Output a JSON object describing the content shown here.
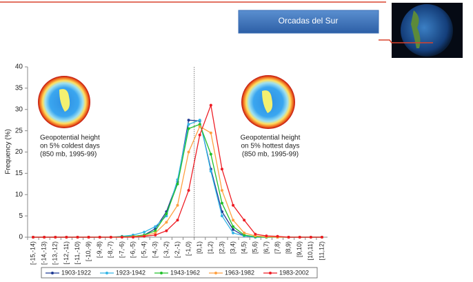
{
  "header": {
    "button": "Orcadas del Sur"
  },
  "chart_data": {
    "type": "line",
    "y_label": "Frequency (%)",
    "categories": [
      "[-15,-14)",
      "[-14,-13)",
      "[-13,-12)",
      "[-12,-11)",
      "[-11,-10)",
      "[-10,-9)",
      "[-9,-8)",
      "[-8,-7)",
      "[-7,-6)",
      "[-6,-5)",
      "[-5,-4)",
      "[-4,-3)",
      "[-3,-2)",
      "[-2,-1)",
      "[-1,0)",
      "[0,1)",
      "[1,2)",
      "[2,3)",
      "[3,4)",
      "[4,5)",
      "[5,6)",
      "[6,7)",
      "[7,8)",
      "[8,9)",
      "[9,10)",
      "[10,11)",
      "[11,12)"
    ],
    "series": [
      {
        "name": "1903-1922",
        "color": "#1f3a93",
        "values": [
          0,
          0,
          0,
          0,
          0,
          0,
          0,
          0,
          0.1,
          0.2,
          0.5,
          2,
          6,
          13,
          27.5,
          27.3,
          16,
          6,
          1.8,
          0.3,
          0,
          0,
          0,
          0,
          0,
          0,
          0
        ]
      },
      {
        "name": "1923-1942",
        "color": "#33b5e5",
        "values": [
          0,
          0,
          0,
          0,
          0,
          0,
          0,
          0,
          0.2,
          0.5,
          1.2,
          2.5,
          5,
          13.5,
          26.5,
          27.5,
          15.5,
          5,
          1,
          0.3,
          0,
          0,
          0,
          0,
          0,
          0,
          0
        ]
      },
      {
        "name": "1943-1962",
        "color": "#22c02a",
        "values": [
          0,
          0,
          0,
          0,
          0,
          0,
          0,
          0,
          0.1,
          0.2,
          0.5,
          1.5,
          5.5,
          12.5,
          25.5,
          26.5,
          19.5,
          8,
          2.5,
          0.5,
          0.1,
          0,
          0,
          0,
          0,
          0,
          0
        ]
      },
      {
        "name": "1963-1982",
        "color": "#ffa040",
        "values": [
          0,
          0,
          0,
          0,
          0,
          0,
          0,
          0,
          0,
          0.1,
          0.3,
          1,
          3.5,
          7.5,
          20,
          26,
          24.5,
          11,
          4,
          1,
          0.3,
          0.1,
          0,
          0,
          0,
          0,
          0
        ]
      },
      {
        "name": "1983-2002",
        "color": "#ee1c24",
        "values": [
          0,
          0,
          0,
          0,
          0,
          0,
          0,
          0,
          0,
          0,
          0.2,
          0.5,
          1.5,
          4,
          11,
          24,
          31,
          16,
          7.5,
          4,
          0.7,
          0.3,
          0.2,
          0,
          0,
          0,
          0
        ]
      }
    ],
    "ylim": [
      0,
      40
    ],
    "yticks": [
      0,
      5,
      10,
      15,
      20,
      25,
      30,
      35,
      40
    ],
    "annotations": [
      [
        "Geopotential height",
        "on 5% coldest days",
        "(850 mb, 1995-99)"
      ],
      [
        "Geopotential height",
        "on 5% hottest days",
        "(850 mb, 1995-99)"
      ]
    ]
  }
}
